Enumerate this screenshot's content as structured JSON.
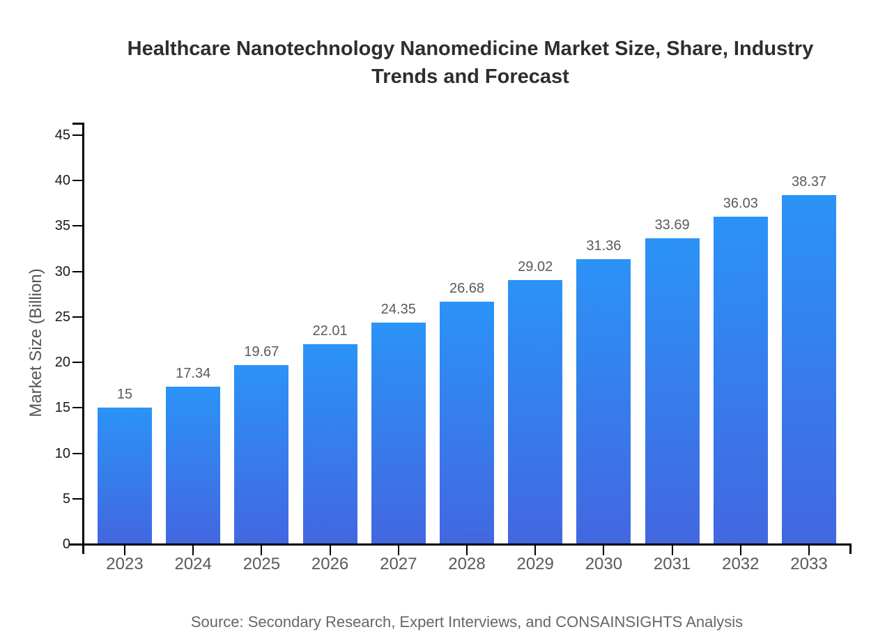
{
  "chart_data": {
    "type": "bar",
    "title": "Healthcare Nanotechnology Nanomedicine Market Size, Share, Industry Trends and Forecast",
    "xlabel": "",
    "ylabel": "Market Size (Billion)",
    "source": "Source: Secondary Research, Expert Interviews, and CONSAINSIGHTS Analysis",
    "categories": [
      "2023",
      "2024",
      "2025",
      "2026",
      "2027",
      "2028",
      "2029",
      "2030",
      "2031",
      "2032",
      "2033"
    ],
    "values": [
      15,
      17.34,
      19.67,
      22.01,
      24.35,
      26.68,
      29.02,
      31.36,
      33.69,
      36.03,
      38.37
    ],
    "value_labels": [
      "15",
      "17.34",
      "19.67",
      "22.01",
      "24.35",
      "26.68",
      "29.02",
      "31.36",
      "33.69",
      "36.03",
      "38.37"
    ],
    "y_ticks": [
      0,
      5,
      10,
      15,
      20,
      25,
      30,
      35,
      40,
      45
    ],
    "ylim": [
      0,
      45
    ],
    "grid": false,
    "legend_position": "none",
    "colors": {
      "bar_gradient_top": "#2B93F7",
      "bar_gradient_bottom": "#4367E0",
      "axis": "#000000",
      "title_text": "#2e2e2e",
      "bar_label_text": "#5a5a5a",
      "y_tick_text": "#1a1a1a",
      "axis_label_text": "#555555",
      "source_text": "#666666"
    }
  }
}
